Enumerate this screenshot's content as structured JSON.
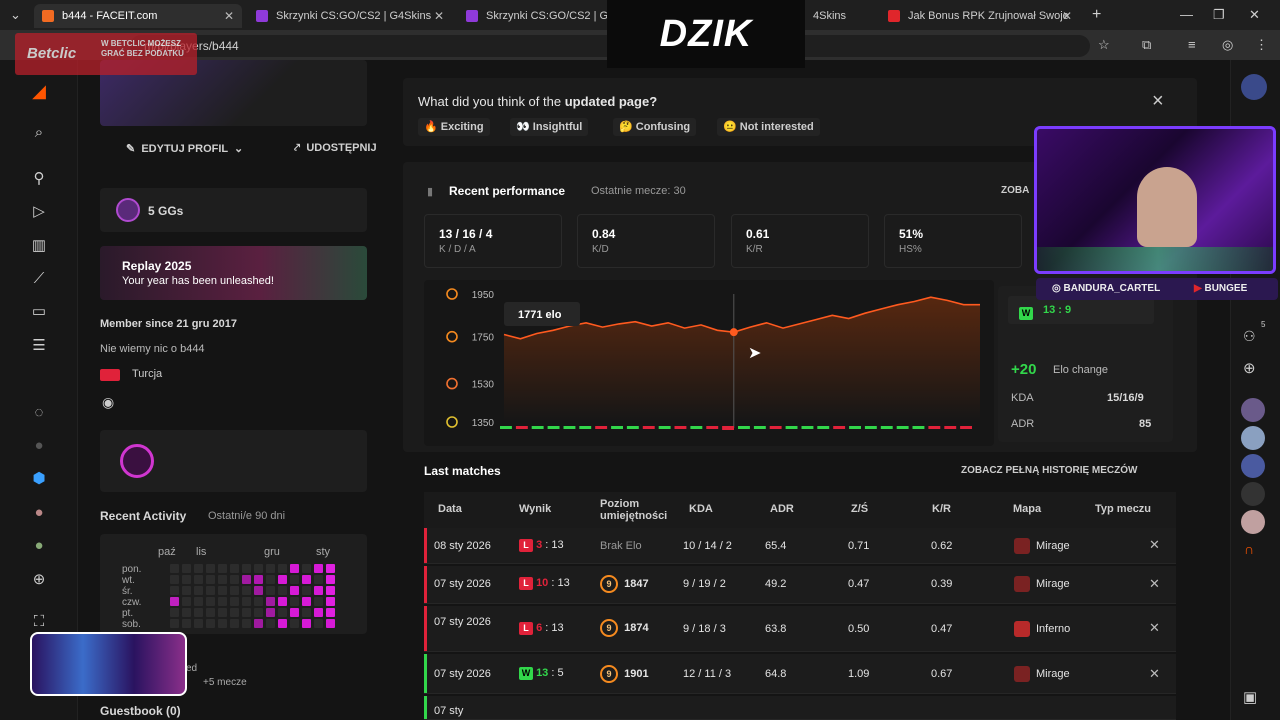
{
  "browser": {
    "tabs": [
      {
        "title": "b444 - FACEIT.com",
        "color": "#f26b22",
        "active": true
      },
      {
        "title": "Skrzynki CS:GO/CS2 | G4Skins",
        "color": "#8f3ad9",
        "active": false
      },
      {
        "title": "Skrzynki CS:GO/CS2 | G4Sk",
        "color": "#8f3ad9",
        "active": false
      },
      {
        "title": "4Skins",
        "color": "#8f3ad9",
        "active": false
      },
      {
        "title": "Jak Bonus RPK Zrujnował Swoje",
        "color": "#e0262b",
        "active": false
      }
    ],
    "url": "m/pl/players/b444",
    "new_tab": "+"
  },
  "overlays": {
    "brand": "DZIK",
    "betclic": "Betclic",
    "betclic_tagline": "W BETCLIC MOŻESZ GRAĆ BEZ PODATKU",
    "cam_handles": [
      "BANDURA_CARTEL",
      "BUNGEE"
    ]
  },
  "profile": {
    "edit_label": "EDYTUJ PROFIL",
    "share_label": "UDOSTĘPNIJ",
    "ggs": "5 GGs",
    "replay_title": "Replay 2025",
    "replay_sub": "Your year has been unleashed!",
    "member_since": "Member since 21 gru 2017",
    "about": "Nie wiemy nic o b444",
    "country": "Turcja",
    "activity_title": "Recent Activity",
    "activity_range": "Ostatni/e 90 dni",
    "months": [
      "paź",
      "lis",
      "gru",
      "sty"
    ],
    "days": [
      "pon.",
      "wt.",
      "śr.",
      "czw.",
      "pt.",
      "sob."
    ],
    "more_matches": "+5 mecze",
    "partial_label": "ed",
    "guestbook": "Guestbook (0)"
  },
  "survey": {
    "question_prefix": "What did you think of the ",
    "question_bold": "updated page?",
    "options": [
      "Exciting",
      "Insightful",
      "Confusing",
      "Not interested"
    ],
    "close": "×"
  },
  "performance": {
    "title": "Recent performance",
    "subtitle": "Ostatnie mecze: 30",
    "more": "ZOBA",
    "stats": [
      {
        "value": "13 / 16 / 4",
        "label": "K / D / A"
      },
      {
        "value": "0.84",
        "label": "K/D"
      },
      {
        "value": "0.61",
        "label": "K/R"
      },
      {
        "value": "51%",
        "label": "HS%"
      }
    ],
    "tooltip": "1771 elo",
    "detail": {
      "result": "W",
      "score": "13 : 9",
      "elo_change": "+20",
      "elo_change_label": "Elo change",
      "kda_label": "KDA",
      "kda_value": "15/16/9",
      "adr_label": "ADR",
      "adr_value": "85"
    }
  },
  "chart_data": {
    "type": "line",
    "y_ticks": [
      1950,
      1750,
      1530,
      1350
    ],
    "ylim": [
      1350,
      1950
    ],
    "grid": false,
    "highlight_index": 14,
    "series": [
      {
        "values": [
          1760,
          1740,
          1765,
          1780,
          1800,
          1815,
          1795,
          1810,
          1820,
          1800,
          1815,
          1790,
          1805,
          1780,
          1771,
          1795,
          1815,
          1790,
          1810,
          1830,
          1850,
          1835,
          1860,
          1880,
          1900,
          1915,
          1935,
          1920,
          1900,
          1900
        ],
        "results": [
          "W",
          "L",
          "W",
          "W",
          "W",
          "W",
          "L",
          "W",
          "W",
          "L",
          "W",
          "L",
          "W",
          "L",
          "L",
          "W",
          "W",
          "L",
          "W",
          "W",
          "W",
          "L",
          "W",
          "W",
          "W",
          "W",
          "W",
          "L",
          "L",
          "L"
        ]
      }
    ]
  },
  "matches": {
    "title": "Last matches",
    "history_link": "ZOBACZ PEŁNĄ HISTORIĘ MECZÓW",
    "columns": [
      "Data",
      "Wynik",
      "Poziom umiejętności",
      "KDA",
      "ADR",
      "Z/Ś",
      "K/R",
      "Mapa",
      "Typ meczu"
    ],
    "rows": [
      {
        "date": "08 sty 2026",
        "result": "L",
        "score_a": "3",
        "score_b": "13",
        "level": "",
        "elo": "Brak Elo",
        "kda": "10 / 14 / 2",
        "adr": "65.4",
        "zs": "0.71",
        "kr": "0.62",
        "map": "Mirage"
      },
      {
        "date": "07 sty 2026",
        "result": "L",
        "score_a": "10",
        "score_b": "13",
        "level": "9",
        "elo": "1847",
        "kda": "9 / 19 / 2",
        "adr": "49.2",
        "zs": "0.47",
        "kr": "0.39",
        "map": "Mirage"
      },
      {
        "date": "07 sty 2026",
        "result": "L",
        "score_a": "6",
        "score_b": "13",
        "level": "9",
        "elo": "1874",
        "kda": "9 / 18 / 3",
        "adr": "63.8",
        "zs": "0.50",
        "kr": "0.47",
        "map": "Inferno"
      },
      {
        "date": "07 sty 2026",
        "result": "W",
        "score_a": "13",
        "score_b": "5",
        "level": "9",
        "elo": "1901",
        "kda": "12 / 11 / 3",
        "adr": "64.8",
        "zs": "1.09",
        "kr": "0.67",
        "map": "Mirage"
      },
      {
        "date": "07 sty",
        "result": "",
        "score_a": "",
        "score_b": "",
        "level": "",
        "elo": "",
        "kda": "",
        "adr": "",
        "zs": "",
        "kr": "",
        "map": ""
      }
    ]
  },
  "sidebar_right": {
    "badge": "5"
  },
  "colors": {
    "accent": "#ff5500",
    "win": "#32d74b",
    "loss": "#e0223a"
  }
}
